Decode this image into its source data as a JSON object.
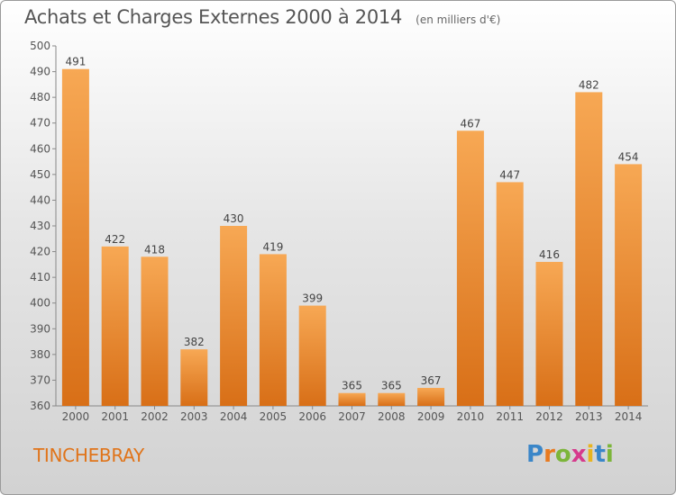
{
  "title": "Achats et Charges Externes 2000 à 2014",
  "unit": "(en milliers d'€)",
  "place": "TINCHEBRAY",
  "logo": {
    "text": "Proxiti",
    "letters": [
      "P",
      "r",
      "o",
      "x",
      "i",
      "t",
      "i"
    ],
    "colors": [
      "#3a86c8",
      "#e87a1f",
      "#7cb53a",
      "#d63a8c",
      "#e8b41f",
      "#3a86c8",
      "#7cb53a"
    ]
  },
  "colors": {
    "bar_light": "#f7a854",
    "bar_dark": "#d86f17",
    "place": "#e0741a"
  },
  "chart_data": {
    "type": "bar",
    "title": "Achats et Charges Externes 2000 à 2014",
    "subtitle": "(en milliers d'€)",
    "categories": [
      "2000",
      "2001",
      "2002",
      "2003",
      "2004",
      "2005",
      "2006",
      "2007",
      "2008",
      "2009",
      "2010",
      "2011",
      "2012",
      "2013",
      "2014"
    ],
    "values": [
      491,
      422,
      418,
      382,
      430,
      419,
      399,
      365,
      365,
      367,
      467,
      447,
      416,
      482,
      454
    ],
    "ylim": [
      360,
      500
    ],
    "yticks": [
      360,
      370,
      380,
      390,
      400,
      410,
      420,
      430,
      440,
      450,
      460,
      470,
      480,
      490,
      500
    ],
    "grid": false,
    "data_labels": true
  }
}
